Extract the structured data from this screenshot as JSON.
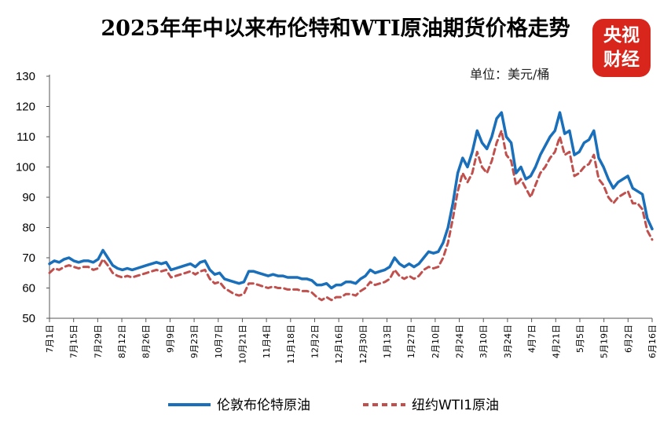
{
  "title": "2025年年中以来布伦特和WTI原油期货价格走势",
  "logo": {
    "line1": "央视",
    "line2": "财经"
  },
  "colors": {
    "brent": "#1a6fba",
    "wti": "#c0504d",
    "logo_bg": "#d9261c"
  },
  "chart_data": {
    "type": "line",
    "title": "2025年年中以来布伦特和WTI原油期货价格走势",
    "unit": "单位：美元/桶",
    "ylim": [
      50,
      130
    ],
    "yticks": [
      50,
      60,
      70,
      80,
      90,
      100,
      110,
      120,
      130
    ],
    "grid": false,
    "legend_position": "bottom",
    "x_tick_labels": [
      "7月1日",
      "7月15日",
      "7月29日",
      "8月12日",
      "8月26日",
      "9月9日",
      "9月23日",
      "10月7日",
      "10月21日",
      "11月4日",
      "11月18日",
      "12月2日",
      "12月16日",
      "12月30日",
      "1月13日",
      "1月27日",
      "2月10日",
      "2月24日",
      "3月10日",
      "3月24日",
      "4月7日",
      "4月21日",
      "5月5日",
      "5月19日",
      "6月2日",
      "6月16日"
    ],
    "series": [
      {
        "name": "伦敦布伦特原油",
        "style": "solid",
        "values": [
          68,
          69,
          68.5,
          69.5,
          70,
          69,
          68.5,
          69,
          69,
          68.5,
          69.5,
          72.5,
          70,
          67.5,
          66.5,
          66,
          66.5,
          66,
          66.5,
          67,
          67.5,
          68,
          68.5,
          68,
          68.5,
          66,
          66.5,
          67,
          67.5,
          68,
          67,
          68.5,
          69,
          66,
          64.5,
          65,
          63,
          62.5,
          62,
          61.5,
          62,
          65.5,
          65.5,
          65,
          64.5,
          64,
          64.5,
          64,
          64,
          63.5,
          63.5,
          63.5,
          63,
          63,
          62.5,
          61,
          61,
          61.5,
          60,
          61,
          61,
          62,
          62,
          61.5,
          63,
          64,
          66,
          65,
          65.5,
          66,
          67,
          70,
          68,
          67,
          68,
          67,
          68,
          70,
          72,
          71.5,
          72,
          75,
          80,
          88,
          98,
          103,
          100,
          105,
          112,
          108,
          106,
          110,
          116,
          118,
          110,
          108,
          98,
          100,
          96,
          97,
          100,
          104,
          107,
          110,
          112,
          118,
          111,
          112,
          104,
          105,
          108,
          109,
          112,
          103,
          100,
          96,
          93,
          95,
          96,
          97,
          93,
          92,
          91,
          83,
          79.5
        ],
        "color": "#1a6fba"
      },
      {
        "name": "纽约WTI1原油",
        "style": "dashed",
        "values": [
          65,
          66.5,
          66,
          67,
          67.5,
          67,
          66.5,
          67,
          67,
          66,
          66.5,
          69.5,
          67.5,
          65,
          64,
          63.5,
          64,
          63.5,
          64,
          64.5,
          65,
          65.5,
          66,
          65.5,
          66,
          63.5,
          64,
          64.5,
          65,
          65.5,
          64.5,
          65.5,
          66,
          63,
          61.5,
          62,
          60,
          59,
          58,
          57.5,
          58,
          61.5,
          61.5,
          61,
          60.5,
          60,
          60.5,
          60,
          60,
          59.5,
          59.5,
          59.5,
          59,
          59,
          58.5,
          57,
          56,
          57,
          56,
          57,
          57,
          58,
          58,
          57.5,
          59,
          60,
          62,
          61,
          61.5,
          62,
          63,
          66,
          64,
          63,
          64,
          63,
          64,
          66,
          67,
          66.5,
          67,
          70,
          75,
          83,
          92,
          98,
          95,
          98,
          105,
          100,
          98,
          102,
          108,
          112,
          104,
          102,
          94,
          96,
          93,
          90,
          94,
          98,
          100,
          103,
          105,
          110,
          104,
          105,
          97,
          98,
          100,
          101,
          104,
          96,
          94,
          90,
          88,
          90,
          91,
          92,
          88,
          88,
          86,
          79,
          76
        ]
      }
    ]
  }
}
